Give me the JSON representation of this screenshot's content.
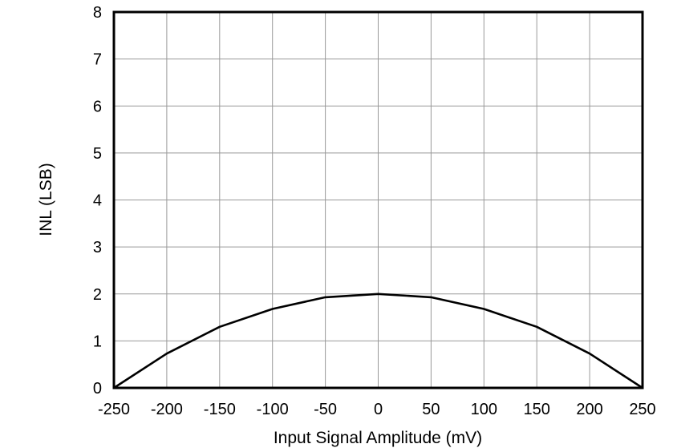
{
  "chart_data": {
    "type": "line",
    "title": "",
    "xlabel": "Input Signal Amplitude (mV)",
    "ylabel": "INL (LSB)",
    "xlim": [
      -250,
      250
    ],
    "ylim": [
      0,
      8
    ],
    "x_ticks": [
      -250,
      -200,
      -150,
      -100,
      -50,
      0,
      50,
      100,
      150,
      200,
      250
    ],
    "y_ticks": [
      0,
      1,
      2,
      3,
      4,
      5,
      6,
      7,
      8
    ],
    "grid": true,
    "legend": null,
    "series": [
      {
        "name": "INL",
        "color": "#000000",
        "x": [
          -250,
          -200,
          -150,
          -100,
          -50,
          0,
          50,
          100,
          150,
          200,
          250
        ],
        "y": [
          0,
          0.73,
          1.3,
          1.68,
          1.93,
          2.0,
          1.93,
          1.68,
          1.3,
          0.73,
          0
        ]
      }
    ]
  },
  "style": {
    "grid_color": "#999999",
    "frame_color": "#000000",
    "line_color": "#000000"
  }
}
